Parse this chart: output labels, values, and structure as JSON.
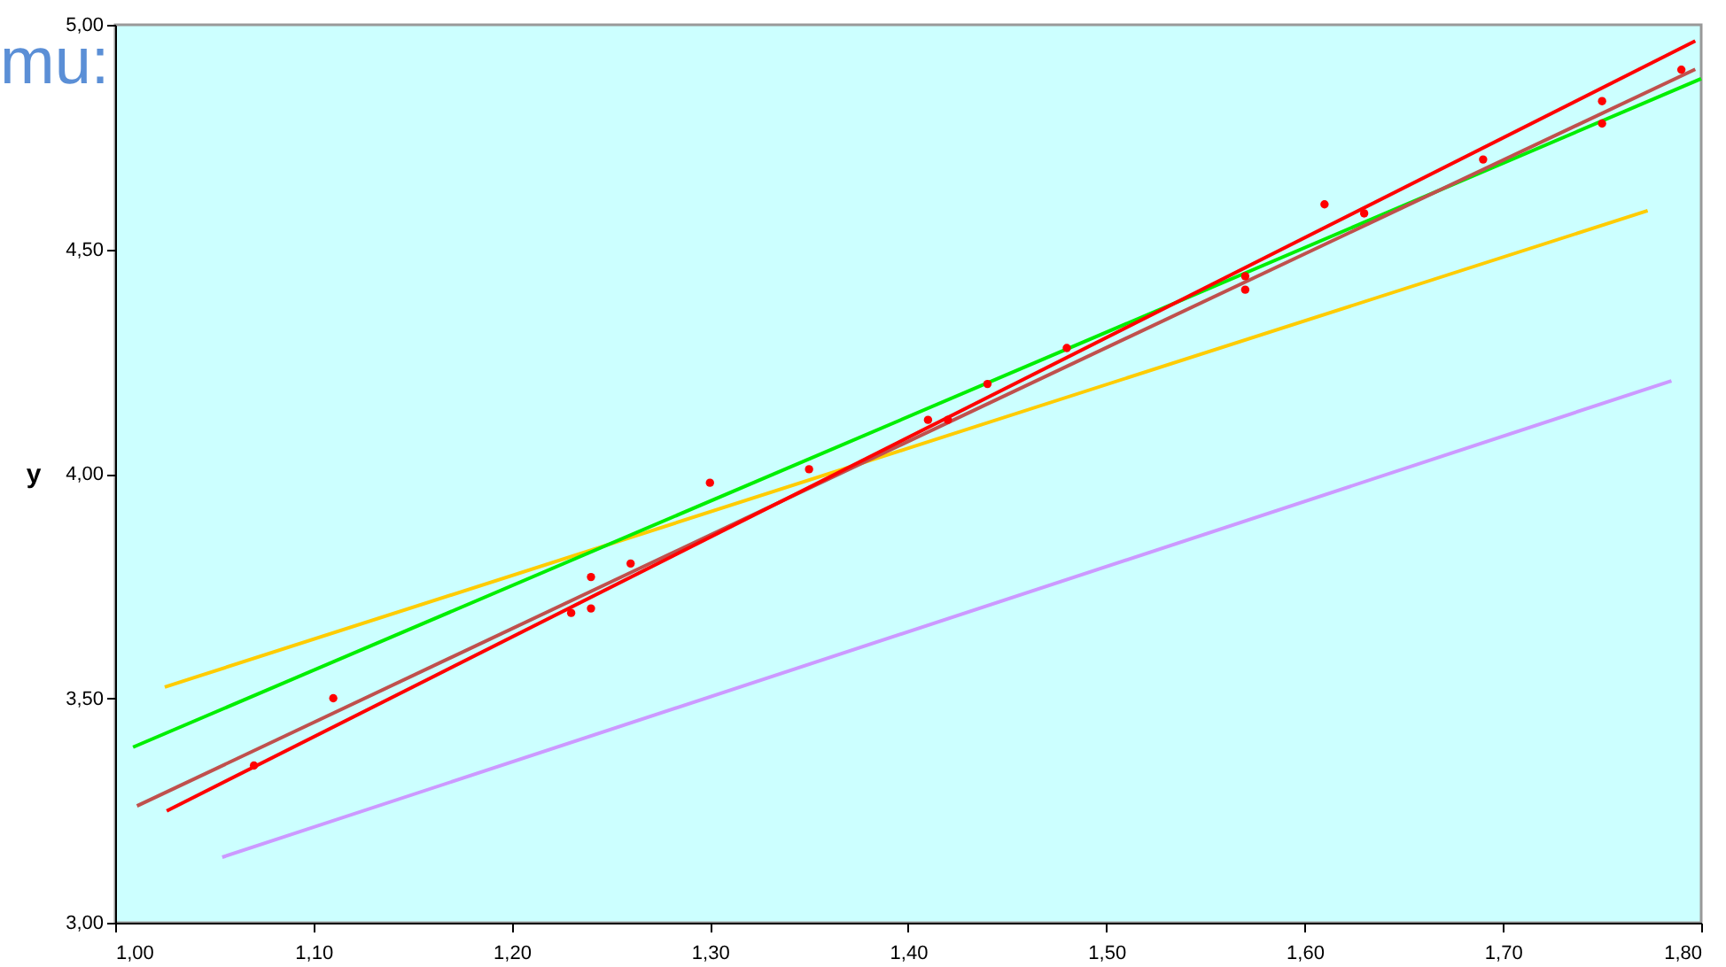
{
  "chart_data": {
    "type": "scatter",
    "ylabel": "y",
    "annotations": [
      "mu:"
    ],
    "xlim": [
      1.0,
      1.8
    ],
    "ylim": [
      3.0,
      5.0
    ],
    "xticks": [
      {
        "value": 1.0,
        "label": "1,00"
      },
      {
        "value": 1.1,
        "label": "1,10"
      },
      {
        "value": 1.2,
        "label": "1,20"
      },
      {
        "value": 1.3,
        "label": "1,30"
      },
      {
        "value": 1.4,
        "label": "1,40"
      },
      {
        "value": 1.5,
        "label": "1,50"
      },
      {
        "value": 1.6,
        "label": "1,60"
      },
      {
        "value": 1.7,
        "label": "1,70"
      },
      {
        "value": 1.8,
        "label": "1,80"
      }
    ],
    "yticks": [
      {
        "value": 3.0,
        "label": "3,00"
      },
      {
        "value": 3.5,
        "label": "3,50"
      },
      {
        "value": 4.0,
        "label": "4,00"
      },
      {
        "value": 4.5,
        "label": "4,50"
      },
      {
        "value": 5.0,
        "label": "5,00"
      }
    ],
    "grid": false,
    "series": [
      {
        "type": "line",
        "color": "#cc99ff",
        "x": [
          1.054,
          1.785
        ],
        "values": [
          3.146,
          4.207
        ]
      },
      {
        "type": "line",
        "color": "#ffcc00",
        "x": [
          1.025,
          1.773
        ],
        "values": [
          3.525,
          4.586
        ]
      },
      {
        "type": "line",
        "color": "#00ee00",
        "x": [
          1.009,
          1.8
        ],
        "values": [
          3.391,
          4.88
        ]
      },
      {
        "type": "line",
        "color": "#c0504d",
        "x": [
          1.011,
          1.797
        ],
        "values": [
          3.26,
          4.901
        ]
      },
      {
        "type": "line",
        "color": "#ff0000",
        "x": [
          1.026,
          1.797
        ],
        "values": [
          3.249,
          4.964
        ]
      },
      {
        "color": "#ff0000",
        "marker": "circle",
        "x": [
          1.07,
          1.11,
          1.23,
          1.24,
          1.24,
          1.26,
          1.3,
          1.35,
          1.41,
          1.42,
          1.44,
          1.48,
          1.57,
          1.57,
          1.61,
          1.63,
          1.69,
          1.75,
          1.75,
          1.79
        ],
        "values": [
          3.35,
          3.5,
          3.69,
          3.77,
          3.7,
          3.8,
          3.98,
          4.01,
          4.12,
          4.12,
          4.2,
          4.28,
          4.44,
          4.41,
          4.6,
          4.58,
          4.7,
          4.83,
          4.78,
          4.9
        ]
      }
    ]
  }
}
